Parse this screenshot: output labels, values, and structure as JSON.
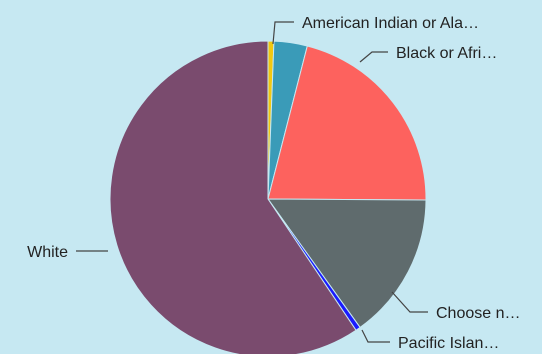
{
  "chart_data": {
    "type": "pie",
    "title": "",
    "legend": "none",
    "slices": [
      {
        "label": "American Indian or Ala…",
        "value": 0.6,
        "color": "#f2c811"
      },
      {
        "label": "",
        "value": 3.4,
        "color": "#3a9bb8"
      },
      {
        "label": "Black or Afri…",
        "value": 21.1,
        "color": "#fd625e"
      },
      {
        "label": "Choose n…",
        "value": 15.0,
        "color": "#5f6b6d"
      },
      {
        "label": "Pacific Islan…",
        "value": 0.5,
        "color": "#1a1aff"
      },
      {
        "label": "White",
        "value": 59.4,
        "color": "#7a4b6e"
      }
    ]
  }
}
